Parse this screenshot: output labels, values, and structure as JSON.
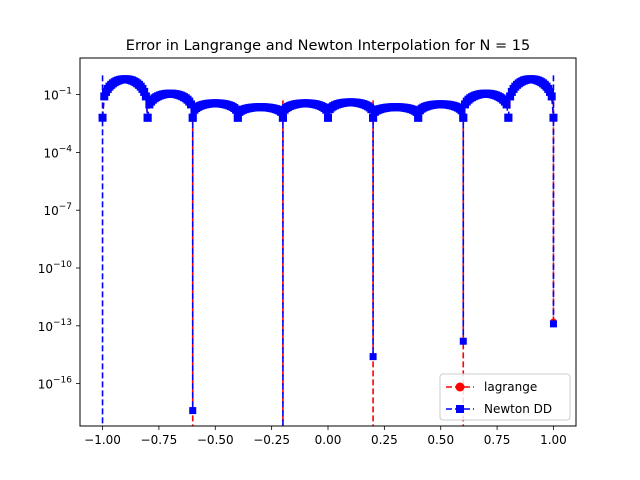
{
  "chart_data": {
    "type": "line",
    "title": "Error in Langrange and Newton Interpolation for N = 15",
    "xlabel": "",
    "ylabel": "",
    "xlim": [
      -1.1,
      1.1
    ],
    "y_scale": "log",
    "ylim_exp": [
      -18.2,
      0.9
    ],
    "x_ticks": [
      -1.0,
      -0.75,
      -0.5,
      -0.25,
      0.0,
      0.25,
      0.5,
      0.75,
      1.0
    ],
    "x_tick_labels": [
      "−1.00",
      "−0.75",
      "−0.50",
      "−0.25",
      "0.00",
      "0.25",
      "0.50",
      "0.75",
      "1.00"
    ],
    "y_ticks_exp": [
      -1,
      -4,
      -7,
      -10,
      -13,
      -16
    ],
    "y_tick_base": "10",
    "y_tick_exponents": [
      "−1",
      "−4",
      "−7",
      "−10",
      "−13",
      "−16"
    ],
    "grid": false,
    "legend_position": "bottom-right",
    "nodes": [
      -1.0,
      -0.8,
      -0.6,
      -0.4,
      -0.2,
      0.0,
      0.2,
      0.4,
      0.6,
      0.8,
      1.0
    ],
    "arch_peak_log10": [
      0.2,
      -0.6,
      -1.3,
      -1.6,
      -1.7,
      -1.2,
      -1.6,
      -1.7,
      -1.3,
      -0.6,
      0.2
    ],
    "deep_dips": [
      {
        "x": -1.0,
        "red_log10": null,
        "blue_log10": null
      },
      {
        "x": -0.6,
        "red_log10": null,
        "blue_log10": -17.4
      },
      {
        "x": -0.2,
        "red_log10": null,
        "blue_log10": null
      },
      {
        "x": 0.2,
        "red_log10": null,
        "blue_log10": -14.6
      },
      {
        "x": 0.6,
        "red_log10": null,
        "blue_log10": -13.8
      },
      {
        "x": 1.0,
        "red_log10": -12.8,
        "blue_log10": -12.9
      }
    ],
    "series": [
      {
        "name": "lagrange",
        "color": "#ff0000",
        "marker": "circle",
        "linestyle": "dashed"
      },
      {
        "name": "Newton DD",
        "color": "#0000ff",
        "marker": "square",
        "linestyle": "dashed"
      }
    ]
  }
}
